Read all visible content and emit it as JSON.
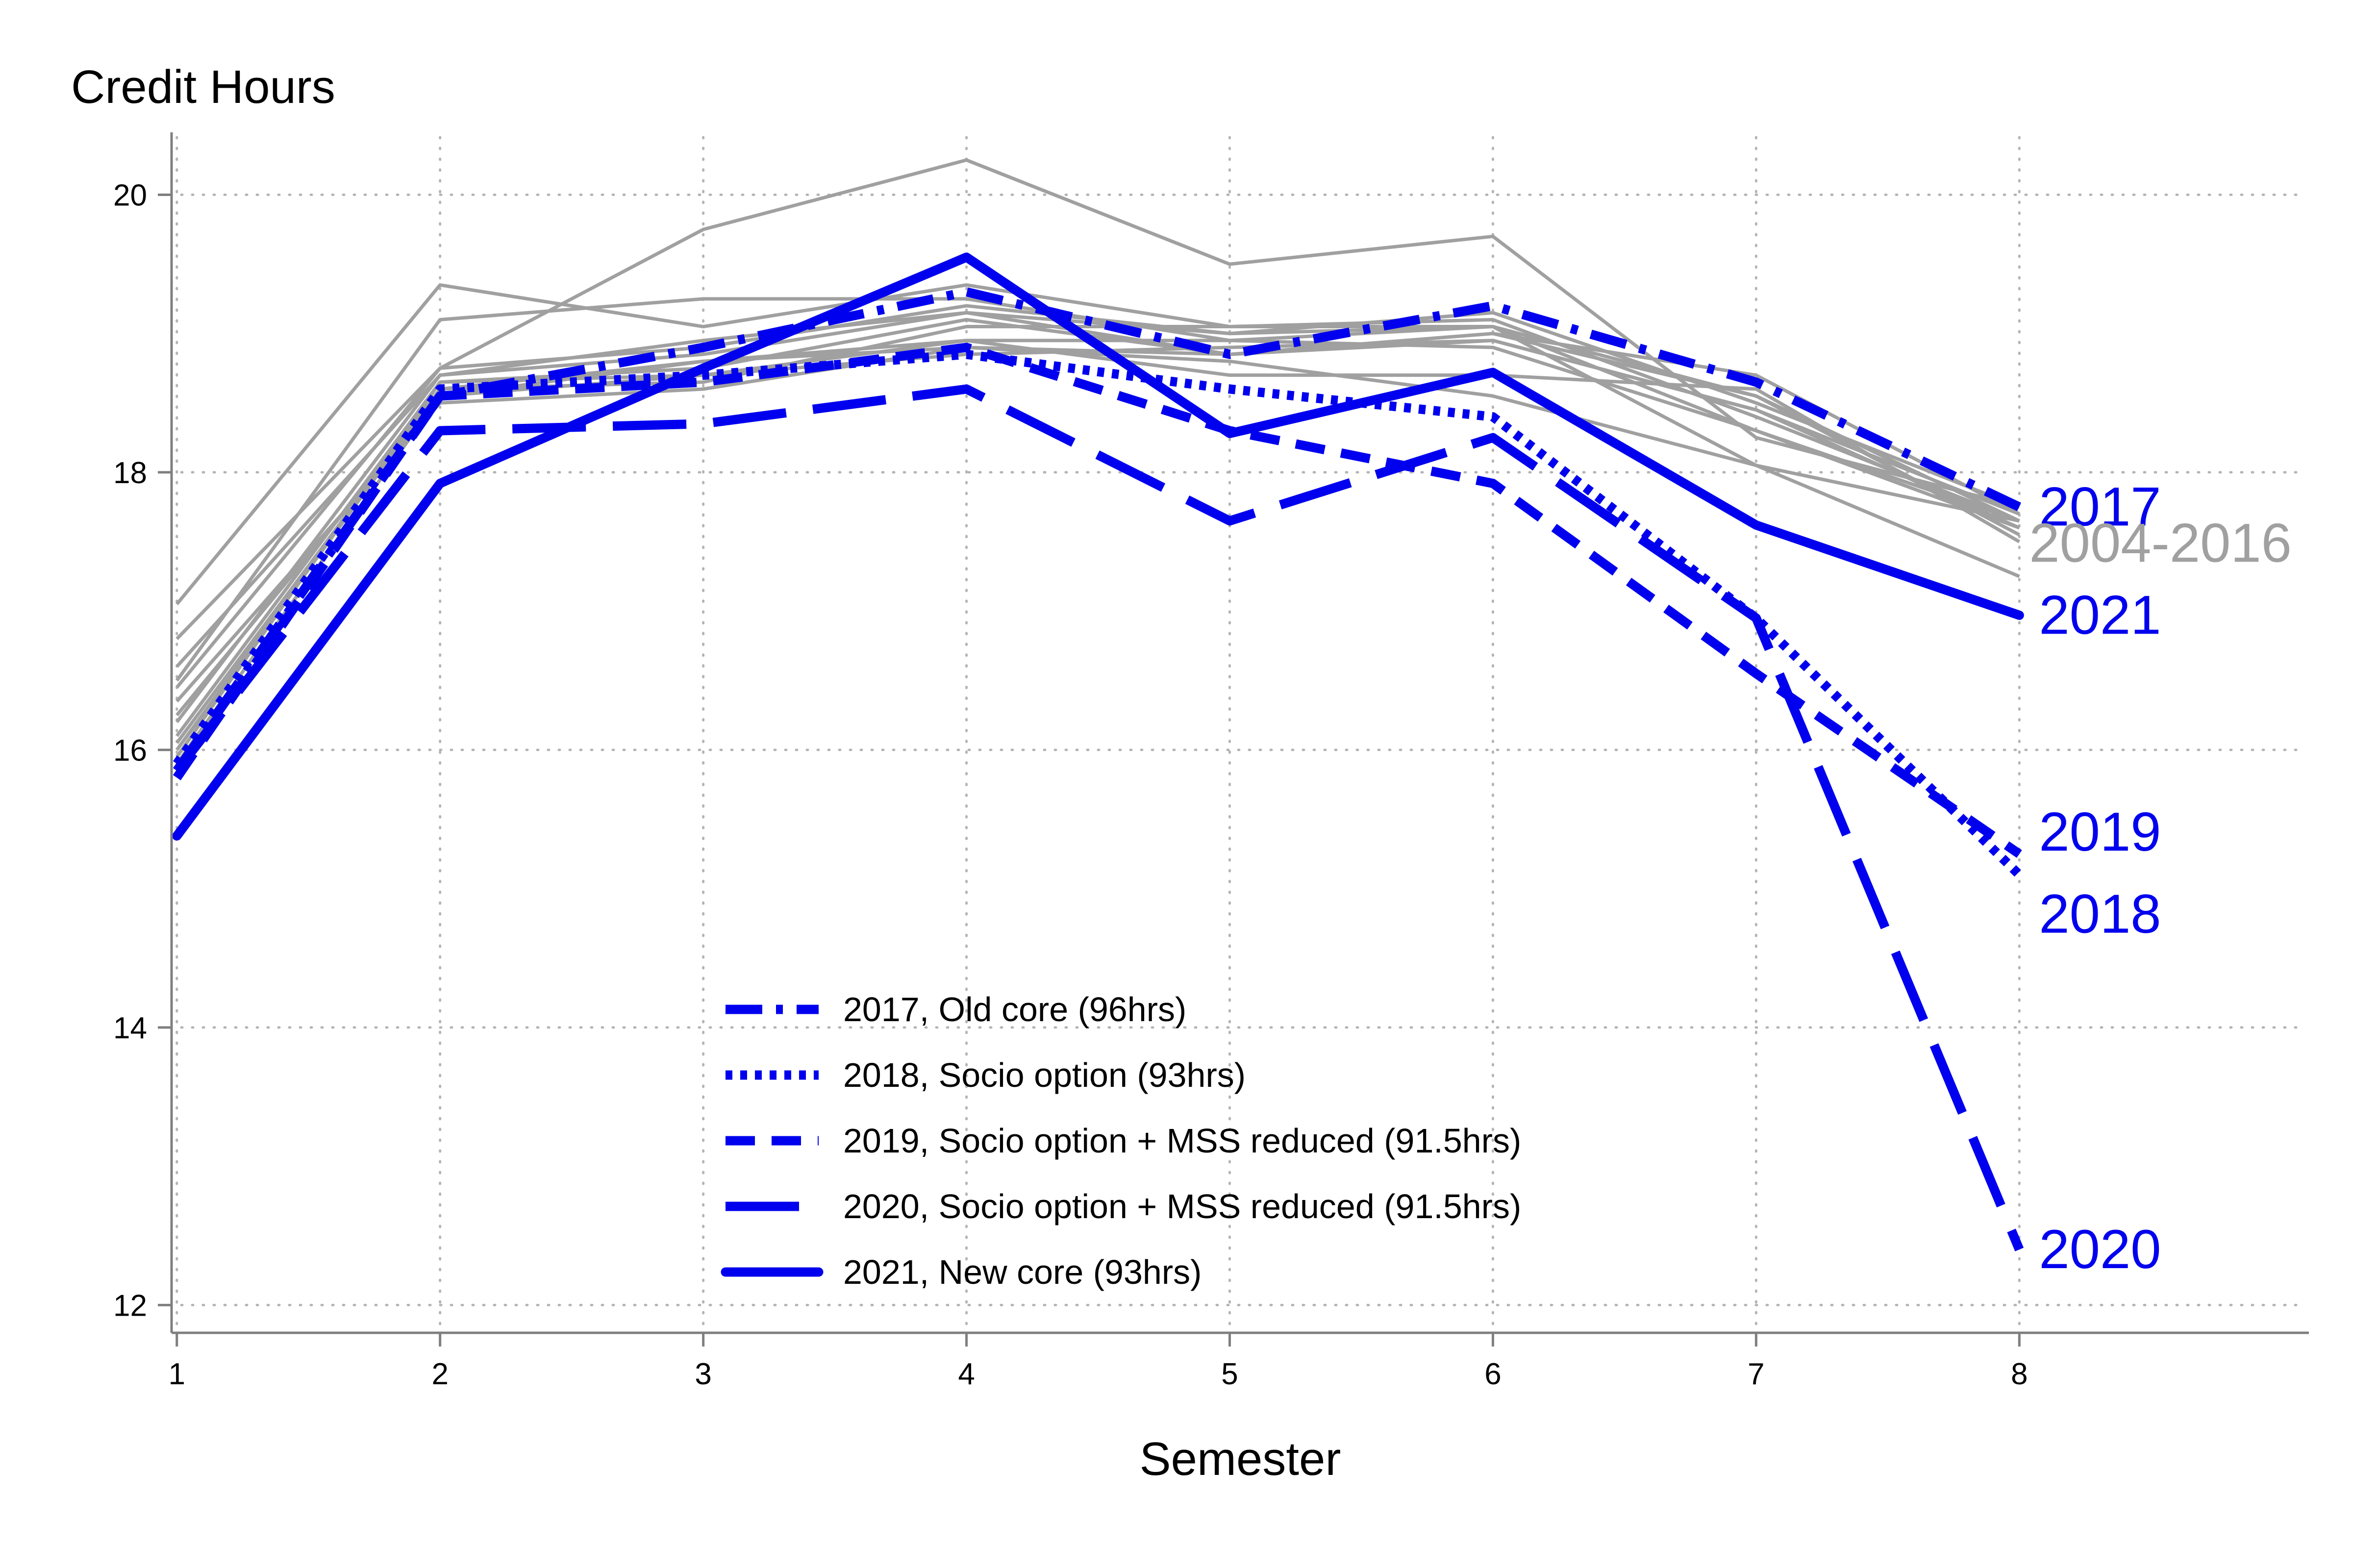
{
  "chart_data": {
    "type": "line",
    "title": "",
    "xlabel": "Semester",
    "ylabel": "Credit Hours",
    "xlim": [
      0.98,
      9.1
    ],
    "ylim": [
      11.8,
      20.45
    ],
    "x": [
      1,
      2,
      3,
      4,
      5,
      6,
      7,
      8
    ],
    "x_ticks": [
      1,
      2,
      3,
      4,
      5,
      6,
      7,
      8
    ],
    "y_ticks": [
      12,
      14,
      16,
      18,
      20
    ],
    "grid": true,
    "legend_position": "bottom-center",
    "colors": {
      "highlight": "#0000ee",
      "background_series": "#a0a0a0"
    },
    "background_series_label": "2004-2016",
    "background_series": [
      [
        17.05,
        19.35,
        19.05,
        19.35,
        19.05,
        19.05,
        18.05,
        17.65
      ],
      [
        16.8,
        18.75,
        19.75,
        20.25,
        19.5,
        19.7,
        18.25,
        17.75
      ],
      [
        16.5,
        19.1,
        19.25,
        19.25,
        18.95,
        19.05,
        18.55,
        17.55
      ],
      [
        16.2,
        18.7,
        18.95,
        19.15,
        18.85,
        18.95,
        18.45,
        17.7
      ],
      [
        16.0,
        18.6,
        18.65,
        19.05,
        19.05,
        19.1,
        18.4,
        17.65
      ],
      [
        15.9,
        18.55,
        18.8,
        18.95,
        18.95,
        18.9,
        18.3,
        17.6
      ],
      [
        16.1,
        18.65,
        18.75,
        19.1,
        18.85,
        19.0,
        18.7,
        17.7
      ],
      [
        16.35,
        18.5,
        18.6,
        18.9,
        18.8,
        18.55,
        18.05,
        17.25
      ],
      [
        15.95,
        18.65,
        18.7,
        18.95,
        18.7,
        18.7,
        18.6,
        17.5
      ],
      [
        16.6,
        18.7,
        18.85,
        19.15,
        19.0,
        19.15,
        18.5,
        17.75
      ],
      [
        16.25,
        18.55,
        18.7,
        18.85,
        18.9,
        18.95,
        18.45,
        17.6
      ],
      [
        16.45,
        18.75,
        18.9,
        19.2,
        19.0,
        19.05,
        18.3,
        17.65
      ],
      [
        16.05,
        18.6,
        18.8,
        18.9,
        18.85,
        19.0,
        18.55,
        17.65
      ]
    ],
    "series": [
      {
        "name": "2017, Old core (96hrs)",
        "end_label": "2017",
        "dash": "dashdot",
        "values": [
          15.85,
          18.55,
          18.9,
          19.3,
          18.85,
          19.2,
          18.65,
          17.75
        ]
      },
      {
        "name": "2018, Socio option (93hrs)",
        "end_label": "2018",
        "dash": "dot",
        "values": [
          15.9,
          18.6,
          18.7,
          18.85,
          18.6,
          18.4,
          16.95,
          15.1
        ]
      },
      {
        "name": "2019, Socio option + MSS reduced (91.5hrs)",
        "end_label": "2019",
        "dash": "dash",
        "values": [
          15.8,
          18.55,
          18.65,
          18.9,
          18.3,
          17.92,
          16.55,
          15.25
        ]
      },
      {
        "name": "2020, Socio option + MSS reduced (91.5hrs)",
        "end_label": "2020",
        "dash": "longdash",
        "values": [
          15.85,
          18.3,
          18.35,
          18.6,
          17.65,
          18.25,
          16.95,
          12.4
        ]
      },
      {
        "name": "2021, New core (93hrs)",
        "end_label": "2021",
        "dash": "solid",
        "values": [
          15.38,
          17.92,
          18.75,
          19.55,
          18.28,
          18.72,
          17.62,
          16.97
        ]
      }
    ]
  }
}
